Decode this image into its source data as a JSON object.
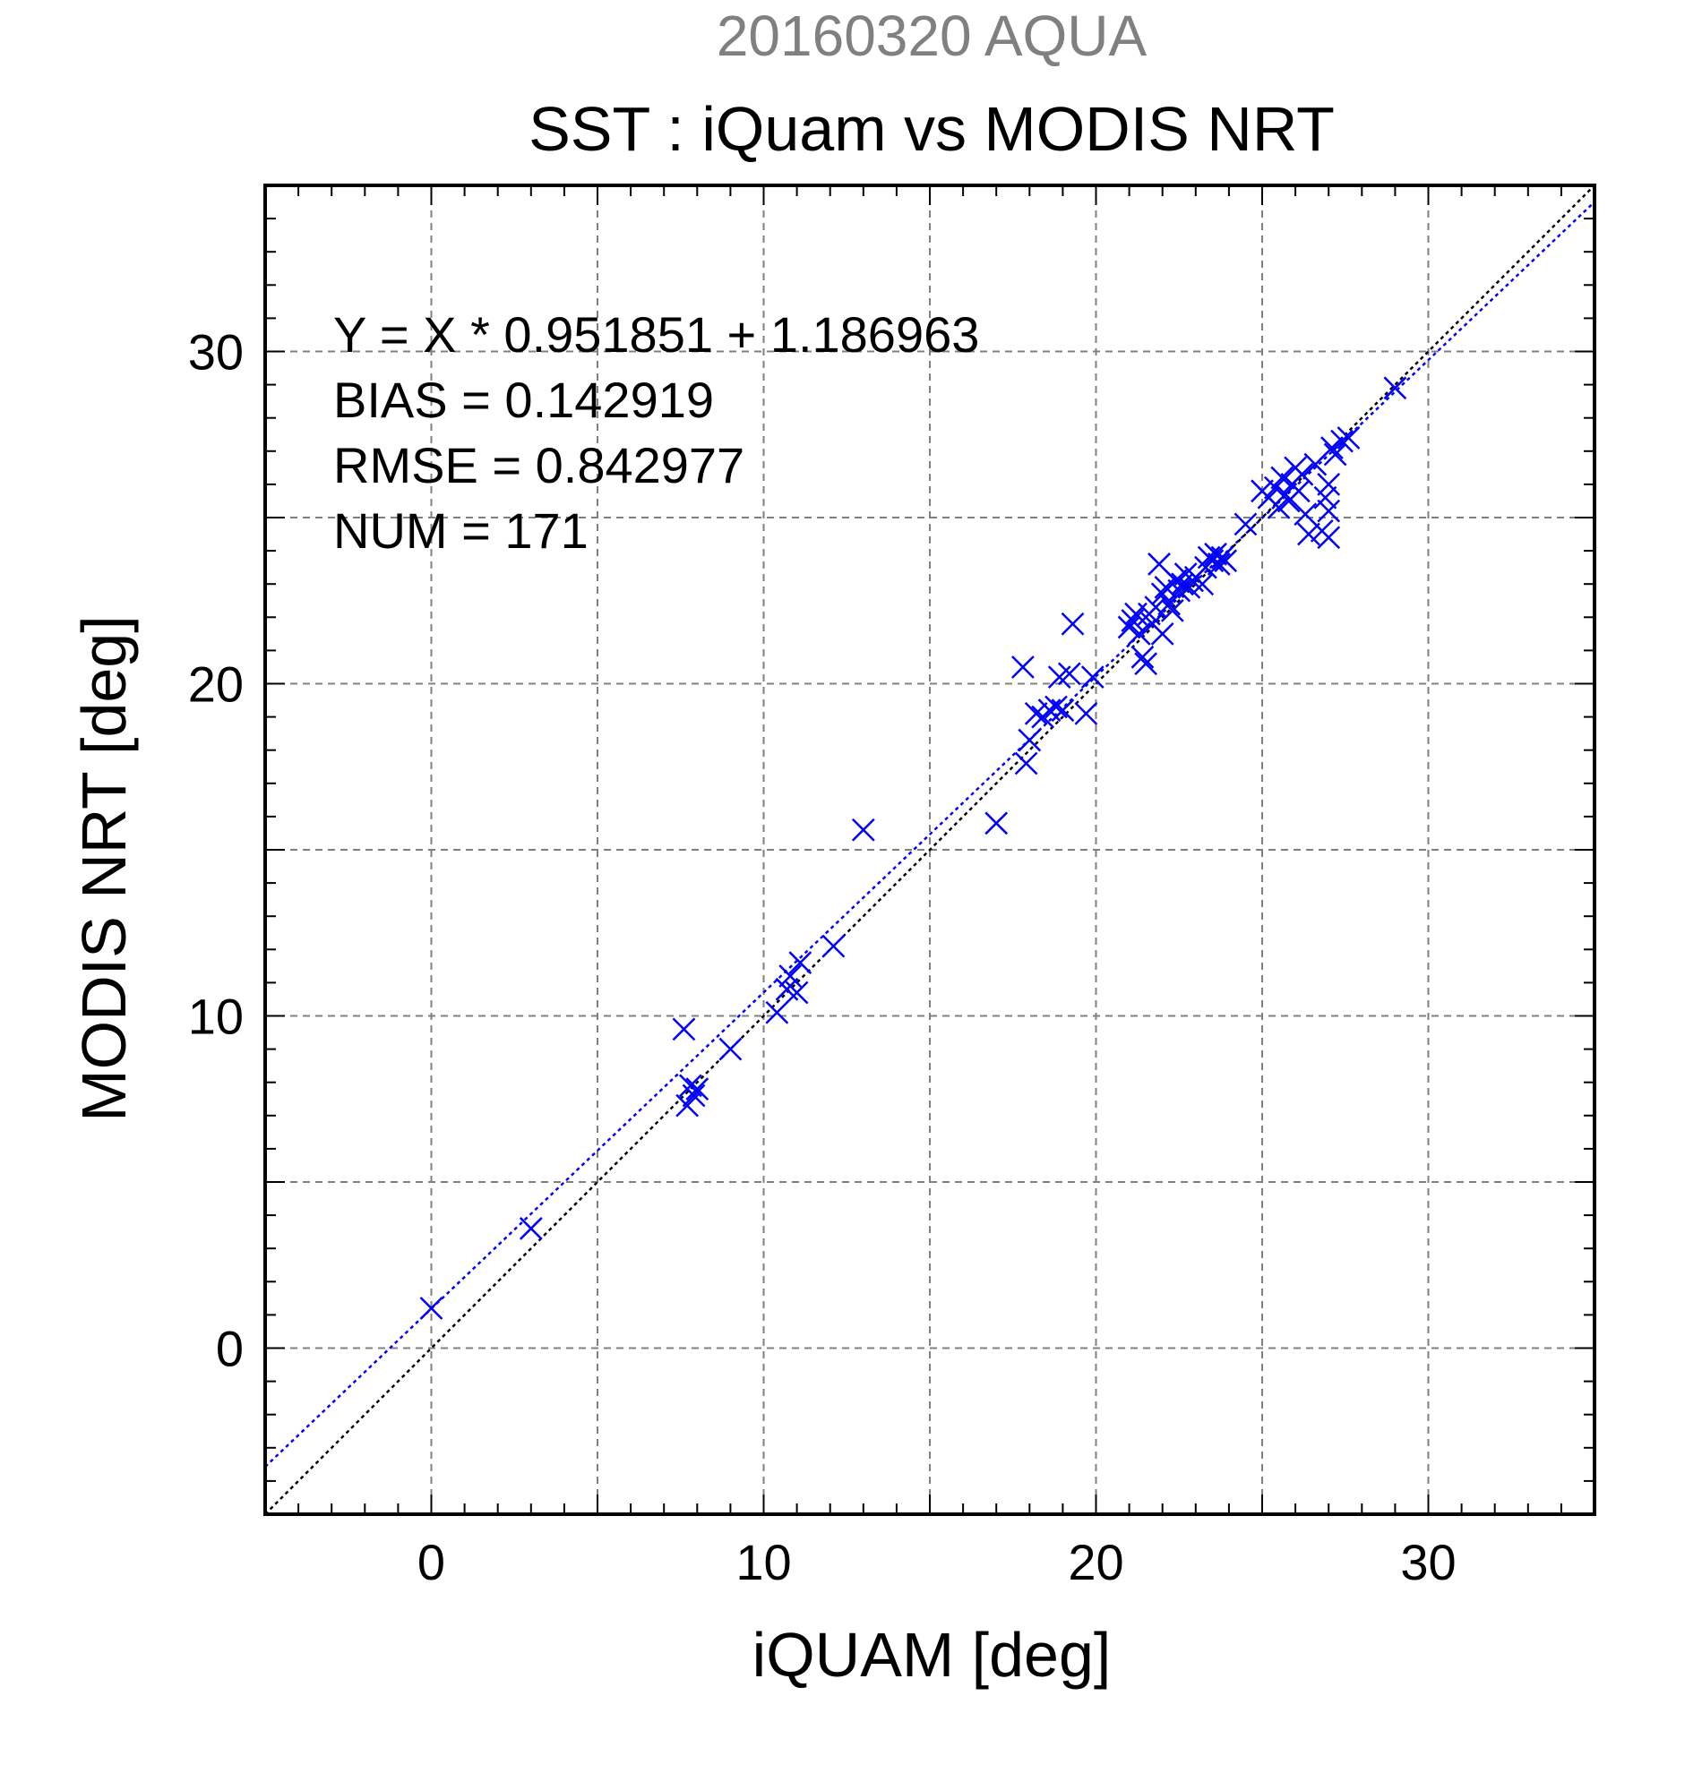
{
  "chart_data": {
    "type": "scatter",
    "title": "SST : iQuam vs MODIS NRT",
    "subtitle": "20160320 AQUA",
    "xlabel": "iQUAM [deg]",
    "ylabel": "MODIS NRT [deg]",
    "xlim": [
      -5,
      35
    ],
    "ylim": [
      -5,
      35
    ],
    "xticks": [
      0,
      10,
      20,
      30
    ],
    "yticks": [
      0,
      10,
      20,
      30
    ],
    "grid": true,
    "colors": {
      "points": "#0000ff",
      "regression_line": "#0000ff",
      "identity_line": "#000000",
      "grid": "#808080",
      "subtitle": "#808080"
    },
    "annotations": [
      "Y = X * 0.951851 + 1.186963",
      "BIAS = 0.142919",
      "RMSE = 0.842977",
      "NUM = 171"
    ],
    "lines": [
      {
        "kind": "regression",
        "slope": 0.951851,
        "intercept": 1.186963,
        "style": "dotted"
      },
      {
        "kind": "identity",
        "slope": 1,
        "intercept": 0,
        "style": "dotted"
      }
    ],
    "series": [
      {
        "marker": "x",
        "points": [
          [
            0.0,
            1.2
          ],
          [
            3.0,
            3.6
          ],
          [
            7.6,
            9.6
          ],
          [
            7.7,
            7.3
          ],
          [
            7.8,
            7.9
          ],
          [
            7.9,
            7.6
          ],
          [
            8.0,
            7.8
          ],
          [
            9.0,
            9.0
          ],
          [
            10.4,
            10.1
          ],
          [
            10.7,
            10.8
          ],
          [
            10.8,
            11.2
          ],
          [
            11.0,
            10.7
          ],
          [
            11.1,
            11.6
          ],
          [
            12.1,
            12.1
          ],
          [
            13.0,
            15.6
          ],
          [
            17.0,
            15.8
          ],
          [
            17.8,
            20.5
          ],
          [
            17.9,
            17.6
          ],
          [
            18.0,
            18.3
          ],
          [
            18.2,
            19.1
          ],
          [
            18.4,
            19.0
          ],
          [
            18.6,
            19.2
          ],
          [
            18.8,
            19.3
          ],
          [
            18.9,
            20.2
          ],
          [
            19.0,
            19.2
          ],
          [
            19.2,
            20.3
          ],
          [
            19.3,
            21.8
          ],
          [
            19.7,
            19.1
          ],
          [
            19.9,
            20.2
          ],
          [
            21.0,
            21.7
          ],
          [
            21.1,
            21.9
          ],
          [
            21.2,
            22.1
          ],
          [
            21.3,
            21.5
          ],
          [
            21.4,
            20.8
          ],
          [
            21.5,
            20.6
          ],
          [
            21.6,
            22.1
          ],
          [
            21.7,
            21.8
          ],
          [
            21.8,
            22.3
          ],
          [
            21.9,
            23.6
          ],
          [
            22.0,
            21.5
          ],
          [
            22.0,
            22.7
          ],
          [
            22.1,
            22.9
          ],
          [
            22.2,
            22.4
          ],
          [
            22.3,
            22.2
          ],
          [
            22.4,
            23.1
          ],
          [
            22.5,
            22.8
          ],
          [
            22.6,
            23.0
          ],
          [
            22.7,
            23.3
          ],
          [
            22.8,
            22.9
          ],
          [
            22.9,
            23.1
          ],
          [
            23.0,
            23.2
          ],
          [
            23.2,
            23.0
          ],
          [
            23.3,
            23.5
          ],
          [
            23.4,
            23.8
          ],
          [
            23.5,
            23.7
          ],
          [
            23.6,
            23.9
          ],
          [
            23.7,
            23.6
          ],
          [
            23.8,
            23.8
          ],
          [
            23.9,
            23.7
          ],
          [
            24.5,
            24.8
          ],
          [
            25.0,
            25.8
          ],
          [
            25.2,
            25.6
          ],
          [
            25.4,
            25.9
          ],
          [
            25.5,
            25.3
          ],
          [
            25.6,
            26.2
          ],
          [
            25.7,
            25.7
          ],
          [
            25.8,
            25.5
          ],
          [
            25.9,
            26.0
          ],
          [
            26.0,
            26.5
          ],
          [
            26.1,
            25.8
          ],
          [
            26.2,
            26.3
          ],
          [
            26.3,
            25.1
          ],
          [
            26.4,
            24.5
          ],
          [
            26.6,
            26.6
          ],
          [
            26.8,
            24.6
          ],
          [
            26.9,
            25.6
          ],
          [
            27.0,
            25.2
          ],
          [
            27.0,
            26.0
          ],
          [
            27.0,
            24.4
          ],
          [
            27.1,
            27.1
          ],
          [
            27.2,
            26.9
          ],
          [
            27.4,
            27.3
          ],
          [
            27.6,
            27.4
          ],
          [
            29.0,
            28.9
          ]
        ]
      }
    ]
  }
}
